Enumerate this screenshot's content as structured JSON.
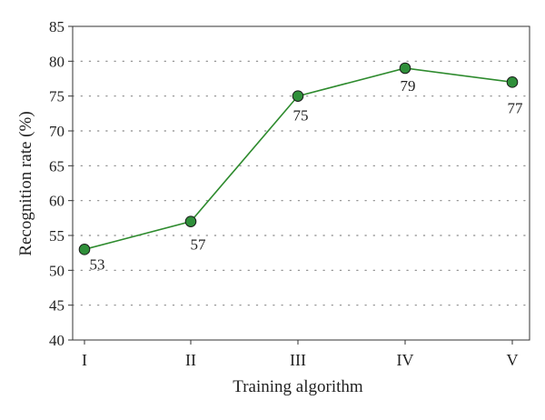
{
  "chart_data": {
    "type": "line",
    "title": "",
    "xlabel": "Training algorithm",
    "ylabel": "Recognition rate (%)",
    "categories": [
      "I",
      "II",
      "III",
      "IV",
      "V"
    ],
    "series": [
      {
        "values": [
          53,
          57,
          75,
          79,
          77
        ],
        "data_labels": [
          "53",
          "57",
          "75",
          "79",
          "77"
        ]
      }
    ],
    "ylim": [
      40,
      85
    ],
    "yticks": [
      "40",
      "45",
      "50",
      "55",
      "60",
      "65",
      "70",
      "75",
      "80",
      "85"
    ],
    "grid": "horizontal-dotted",
    "legend": "none",
    "colors": {
      "line": "#2e8b2e",
      "marker_fill": "#2f8f3a",
      "marker_stroke": "#1a1a1a",
      "axis": "#333333",
      "grid": "#888888"
    }
  }
}
